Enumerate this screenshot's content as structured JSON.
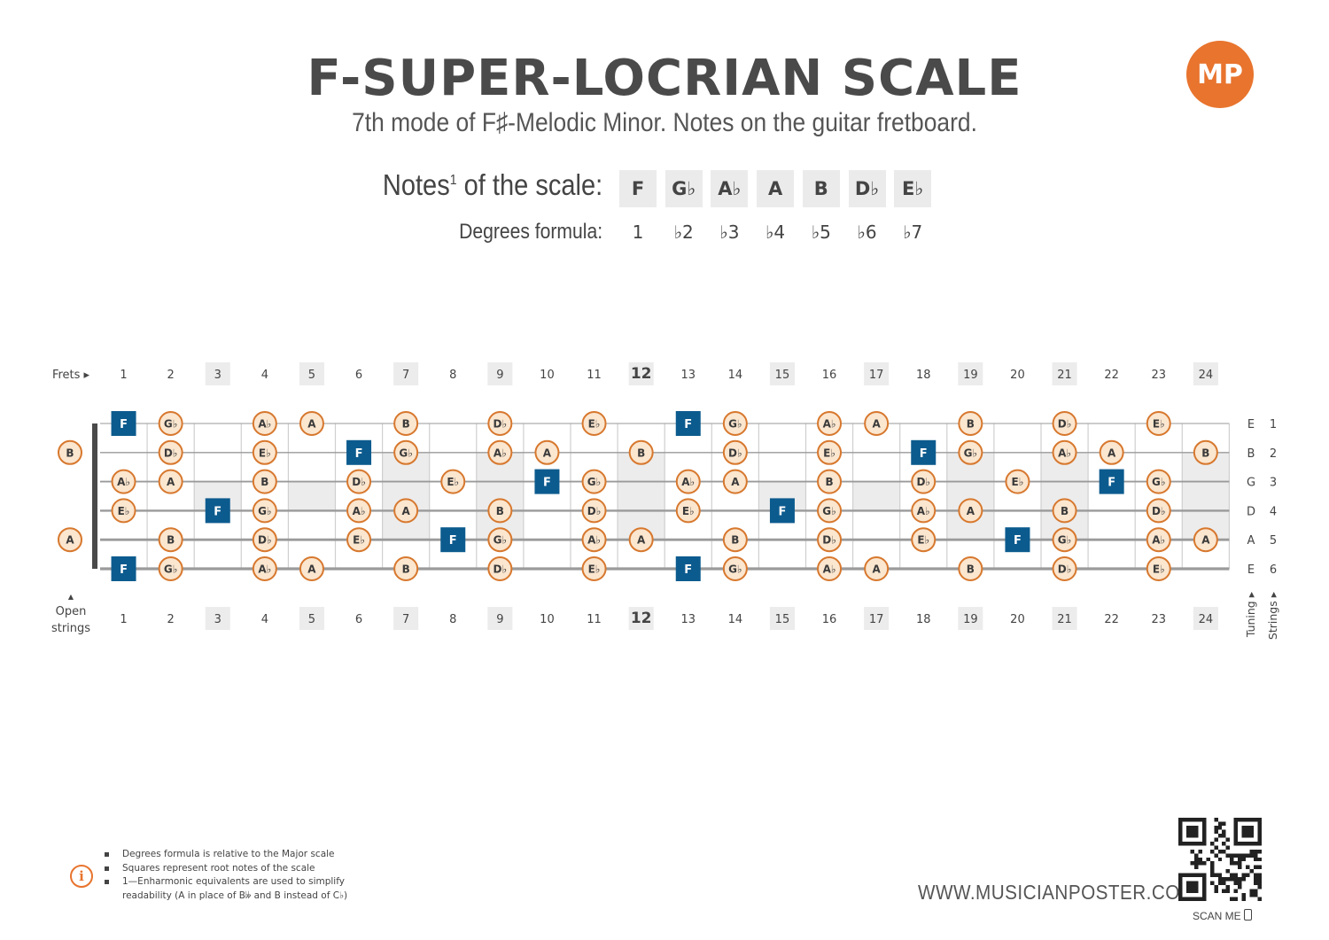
{
  "title": "F-SUPER-LOCRIAN SCALE",
  "subtitle": "7th mode of F♯-Melodic Minor. Notes on the guitar fretboard.",
  "logo": "MP",
  "notes_label": "Notes",
  "notes_label_sup": "1",
  "notes_label_rest": " of the scale:",
  "degrees_label": "Degrees formula:",
  "scale_notes": [
    "F",
    "G♭",
    "A♭",
    "A",
    "B",
    "D♭",
    "E♭"
  ],
  "degrees": [
    "1",
    "♭2",
    "♭3",
    "♭4",
    "♭5",
    "♭6",
    "♭7"
  ],
  "fretboard": {
    "frets_label": "Frets ▸",
    "open_label_1": "Open",
    "open_label_2": "strings",
    "up_arrow": "▲",
    "tuning_label": "Tuning ▸",
    "strings_label": "Strings ▸",
    "fret_numbers": [
      "1",
      "2",
      "3",
      "4",
      "5",
      "6",
      "7",
      "8",
      "9",
      "10",
      "11",
      "12",
      "13",
      "14",
      "15",
      "16",
      "17",
      "18",
      "19",
      "20",
      "21",
      "22",
      "23",
      "24"
    ],
    "highlighted_frets": [
      3,
      5,
      7,
      9,
      12,
      15,
      17,
      19,
      21,
      24
    ],
    "bold_frets": [
      12
    ],
    "strings": [
      {
        "tuning": "E",
        "number": "1",
        "open": "",
        "frets": [
          "F",
          "G♭",
          "",
          "A♭",
          "A",
          "",
          "B",
          "",
          "D♭",
          "",
          "E♭",
          "",
          "F",
          "G♭",
          "",
          "A♭",
          "A",
          "",
          "B",
          "",
          "D♭",
          "",
          "E♭",
          ""
        ]
      },
      {
        "tuning": "B",
        "number": "2",
        "open": "B",
        "frets": [
          "",
          "D♭",
          "",
          "E♭",
          "",
          "F",
          "G♭",
          "",
          "A♭",
          "A",
          "",
          "B",
          "",
          "D♭",
          "",
          "E♭",
          "",
          "F",
          "G♭",
          "",
          "A♭",
          "A",
          "",
          "B"
        ]
      },
      {
        "tuning": "G",
        "number": "3",
        "open": "",
        "frets": [
          "A♭",
          "A",
          "",
          "B",
          "",
          "D♭",
          "",
          "E♭",
          "",
          "F",
          "G♭",
          "",
          "A♭",
          "A",
          "",
          "B",
          "",
          "D♭",
          "",
          "E♭",
          "",
          "F",
          "G♭",
          ""
        ]
      },
      {
        "tuning": "D",
        "number": "4",
        "open": "",
        "frets": [
          "E♭",
          "",
          "F",
          "G♭",
          "",
          "A♭",
          "A",
          "",
          "B",
          "",
          "D♭",
          "",
          "E♭",
          "",
          "F",
          "G♭",
          "",
          "A♭",
          "A",
          "",
          "B",
          "",
          "D♭",
          ""
        ]
      },
      {
        "tuning": "A",
        "number": "5",
        "open": "A",
        "frets": [
          "",
          "B",
          "",
          "D♭",
          "",
          "E♭",
          "",
          "F",
          "G♭",
          "",
          "A♭",
          "A",
          "",
          "B",
          "",
          "D♭",
          "",
          "E♭",
          "",
          "F",
          "G♭",
          "",
          "A♭",
          "A"
        ]
      },
      {
        "tuning": "E",
        "number": "6",
        "open": "",
        "frets": [
          "F",
          "G♭",
          "",
          "A♭",
          "A",
          "",
          "B",
          "",
          "D♭",
          "",
          "E♭",
          "",
          "F",
          "G♭",
          "",
          "A♭",
          "A",
          "",
          "B",
          "",
          "D♭",
          "",
          "E♭",
          ""
        ]
      }
    ],
    "root": "F",
    "colors": {
      "root": "#0c5b8e",
      "note_border": "#d7782e",
      "note_fill": "#fbe6cf",
      "highlight": "#ececec"
    }
  },
  "footnotes": [
    "Degrees formula is relative to the Major scale",
    "Squares represent root notes of the scale",
    "1—Enharmonic equivalents are used to simplify readability (A in place of B𝄫 and B instead of C♭)"
  ],
  "info_icon": "i",
  "website": "WWW.MUSICIANPOSTER.COM",
  "scan_label": "SCAN ME"
}
